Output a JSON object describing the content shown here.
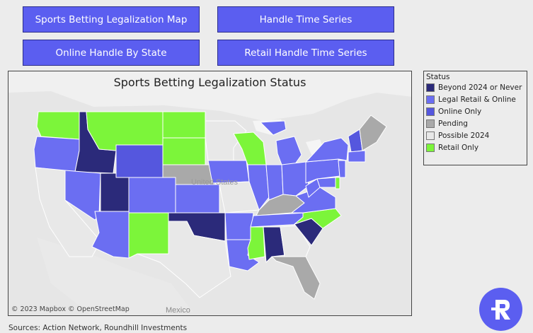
{
  "nav": {
    "map_label": "Sports Betting Legalization Map",
    "handle_ts_label": "Handle Time Series",
    "online_label": "Online Handle By State",
    "retail_ts_label": "Retail Handle Time Series"
  },
  "map": {
    "title": "Sports Betting Legalization Status",
    "attribution": "© 2023 Mapbox  © OpenStreetMap",
    "labels": {
      "country_us": "United States",
      "country_mx": "Mexico"
    }
  },
  "legend": {
    "title": "Status",
    "items": [
      {
        "label": "Beyond 2024 or Never",
        "color": "#2b2a7a"
      },
      {
        "label": "Legal Retail & Online",
        "color": "#6b6ef2"
      },
      {
        "label": "Online Only",
        "color": "#5557de"
      },
      {
        "label": "Pending",
        "color": "#a9a9a9"
      },
      {
        "label": "Possible 2024",
        "color": "#e8e8e8"
      },
      {
        "label": "Retail Only",
        "color": "#7cf53a"
      }
    ]
  },
  "sources": "Sources: Action Network, Roundhill Investments",
  "logo_letter": "R"
}
